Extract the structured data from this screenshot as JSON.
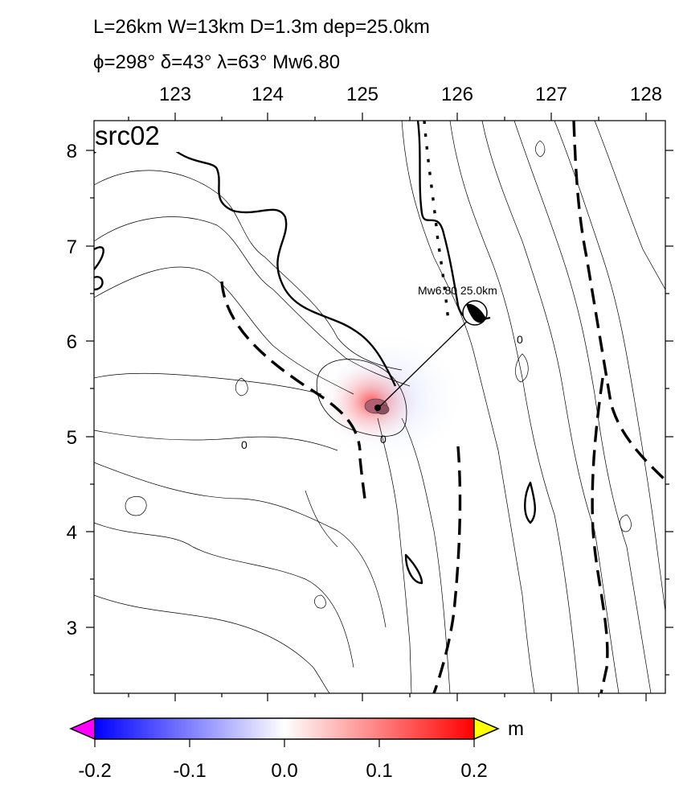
{
  "header": {
    "line1": "L=26km W=13km D=1.3m dep=25.0km",
    "line2": "ϕ=298° δ=43° λ=63° Mw6.80"
  },
  "map": {
    "panel_label": "src02",
    "lon_ticks": [
      "123",
      "124",
      "125",
      "126",
      "127",
      "128"
    ],
    "lat_ticks": [
      "8",
      "7",
      "6",
      "5",
      "4",
      "3"
    ],
    "event_label": "Mw6.80  25.0km",
    "contour_zero_labels": [
      "0",
      "0",
      "0"
    ]
  },
  "colorbar": {
    "ticks": [
      "-0.2",
      "-0.1",
      "0.0",
      "0.1",
      "0.2"
    ],
    "unit": "m",
    "colors": {
      "min": "#0000ff",
      "mid": "#ffffff",
      "max": "#ff0000",
      "under": "#ff00ff",
      "over": "#ffff00"
    }
  }
}
